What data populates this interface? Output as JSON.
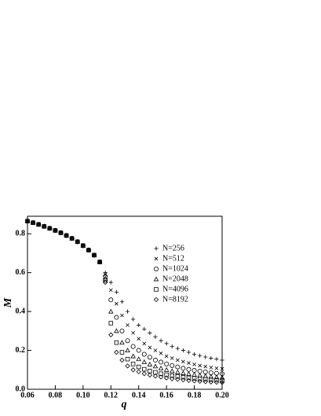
{
  "chart_data": {
    "type": "scatter",
    "xlabel": "q",
    "ylabel": "M",
    "x": [
      0.06,
      0.064,
      0.068,
      0.072,
      0.076,
      0.08,
      0.084,
      0.088,
      0.092,
      0.096,
      0.1,
      0.104,
      0.108,
      0.112,
      0.116,
      0.12,
      0.124,
      0.128,
      0.132,
      0.136,
      0.14,
      0.144,
      0.148,
      0.152,
      0.156,
      0.16,
      0.164,
      0.168,
      0.172,
      0.176,
      0.18,
      0.184,
      0.188,
      0.192,
      0.196,
      0.2
    ],
    "series": [
      {
        "name": "N=256",
        "marker": "plus",
        "color": "#000000",
        "values": [
          0.865,
          0.857,
          0.848,
          0.838,
          0.828,
          0.817,
          0.805,
          0.791,
          0.776,
          0.759,
          0.739,
          0.716,
          0.69,
          0.655,
          0.6,
          0.55,
          0.5,
          0.45,
          0.4,
          0.36,
          0.33,
          0.31,
          0.29,
          0.27,
          0.25,
          0.235,
          0.22,
          0.21,
          0.2,
          0.19,
          0.18,
          0.173,
          0.166,
          0.16,
          0.155,
          0.15
        ]
      },
      {
        "name": "N=512",
        "marker": "cross",
        "color": "#000000",
        "values": [
          0.865,
          0.857,
          0.848,
          0.838,
          0.828,
          0.817,
          0.805,
          0.791,
          0.776,
          0.759,
          0.739,
          0.716,
          0.69,
          0.655,
          0.59,
          0.51,
          0.44,
          0.38,
          0.33,
          0.29,
          0.26,
          0.235,
          0.215,
          0.2,
          0.185,
          0.17,
          0.16,
          0.15,
          0.142,
          0.135,
          0.128,
          0.122,
          0.117,
          0.112,
          0.108,
          0.105
        ]
      },
      {
        "name": "N=1024",
        "marker": "circle",
        "color": "#000000",
        "values": [
          0.865,
          0.857,
          0.848,
          0.838,
          0.828,
          0.817,
          0.805,
          0.791,
          0.776,
          0.759,
          0.739,
          0.716,
          0.69,
          0.655,
          0.58,
          0.46,
          0.37,
          0.3,
          0.25,
          0.22,
          0.2,
          0.18,
          0.165,
          0.15,
          0.14,
          0.13,
          0.122,
          0.115,
          0.108,
          0.102,
          0.097,
          0.093,
          0.089,
          0.085,
          0.082,
          0.08
        ]
      },
      {
        "name": "N=2048",
        "marker": "triangle",
        "color": "#000000",
        "values": [
          0.865,
          0.857,
          0.848,
          0.838,
          0.828,
          0.817,
          0.805,
          0.791,
          0.776,
          0.759,
          0.739,
          0.716,
          0.69,
          0.655,
          0.57,
          0.4,
          0.3,
          0.24,
          0.2,
          0.17,
          0.155,
          0.14,
          0.128,
          0.118,
          0.108,
          0.1,
          0.094,
          0.088,
          0.083,
          0.079,
          0.075,
          0.071,
          0.068,
          0.065,
          0.062,
          0.06
        ]
      },
      {
        "name": "N=4096",
        "marker": "square",
        "color": "#000000",
        "values": [
          0.865,
          0.857,
          0.848,
          0.838,
          0.828,
          0.817,
          0.805,
          0.791,
          0.776,
          0.759,
          0.739,
          0.716,
          0.69,
          0.655,
          0.56,
          0.34,
          0.24,
          0.19,
          0.155,
          0.13,
          0.115,
          0.103,
          0.094,
          0.087,
          0.08,
          0.075,
          0.07,
          0.066,
          0.062,
          0.059,
          0.056,
          0.053,
          0.051,
          0.049,
          0.047,
          0.045
        ]
      },
      {
        "name": "N=8192",
        "marker": "diamond",
        "color": "#000000",
        "values": [
          0.865,
          0.857,
          0.848,
          0.838,
          0.828,
          0.817,
          0.805,
          0.791,
          0.776,
          0.759,
          0.739,
          0.716,
          0.69,
          0.655,
          0.55,
          0.28,
          0.19,
          0.15,
          0.12,
          0.1,
          0.09,
          0.08,
          0.073,
          0.068,
          0.063,
          0.058,
          0.054,
          0.051,
          0.048,
          0.045,
          0.043,
          0.041,
          0.039,
          0.037,
          0.036,
          0.035
        ]
      }
    ],
    "xlim": [
      0.06,
      0.2
    ],
    "xticks": [
      0.06,
      0.08,
      {
        "value": 0.1,
        "label": "0.10"
      },
      0.12,
      0.14,
      0.16,
      0.18,
      {
        "value": 0.2,
        "label": "0.20"
      }
    ],
    "ylim": [
      0,
      0.89
    ],
    "yticks": [
      {
        "value": 0,
        "label": "0.0"
      },
      0.2,
      0.4,
      0.6,
      0.8
    ],
    "legend": "upper right"
  }
}
